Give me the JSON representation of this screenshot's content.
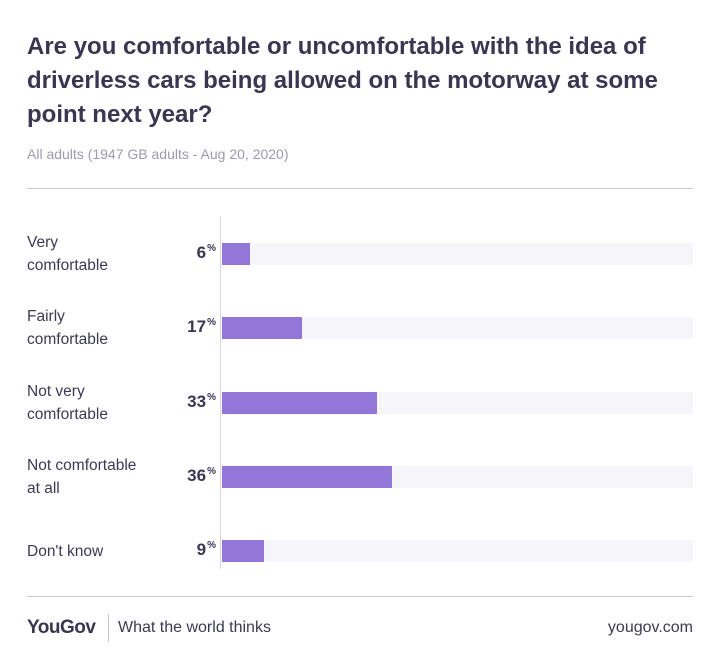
{
  "chart_data": {
    "type": "bar",
    "orientation": "horizontal",
    "title": "Are you comfortable or uncomfortable with the idea of driverless cars being allowed on the motorway at some point next year?",
    "subtitle": "All adults (1947 GB adults - Aug 20, 2020)",
    "categories": [
      [
        "Very",
        "comfortable"
      ],
      [
        "Fairly",
        "comfortable"
      ],
      [
        "Not very",
        "comfortable"
      ],
      [
        "Not comfortable",
        "at all"
      ],
      [
        "Don't know"
      ]
    ],
    "values": [
      6,
      17,
      33,
      36,
      9
    ],
    "unit": "%",
    "xlim": [
      0,
      100
    ],
    "color": "#9277d9",
    "track_color": "#f6f5f9"
  },
  "footer": {
    "logo": "YouGov",
    "tagline": "What the world thinks",
    "site": "yougov.com"
  }
}
